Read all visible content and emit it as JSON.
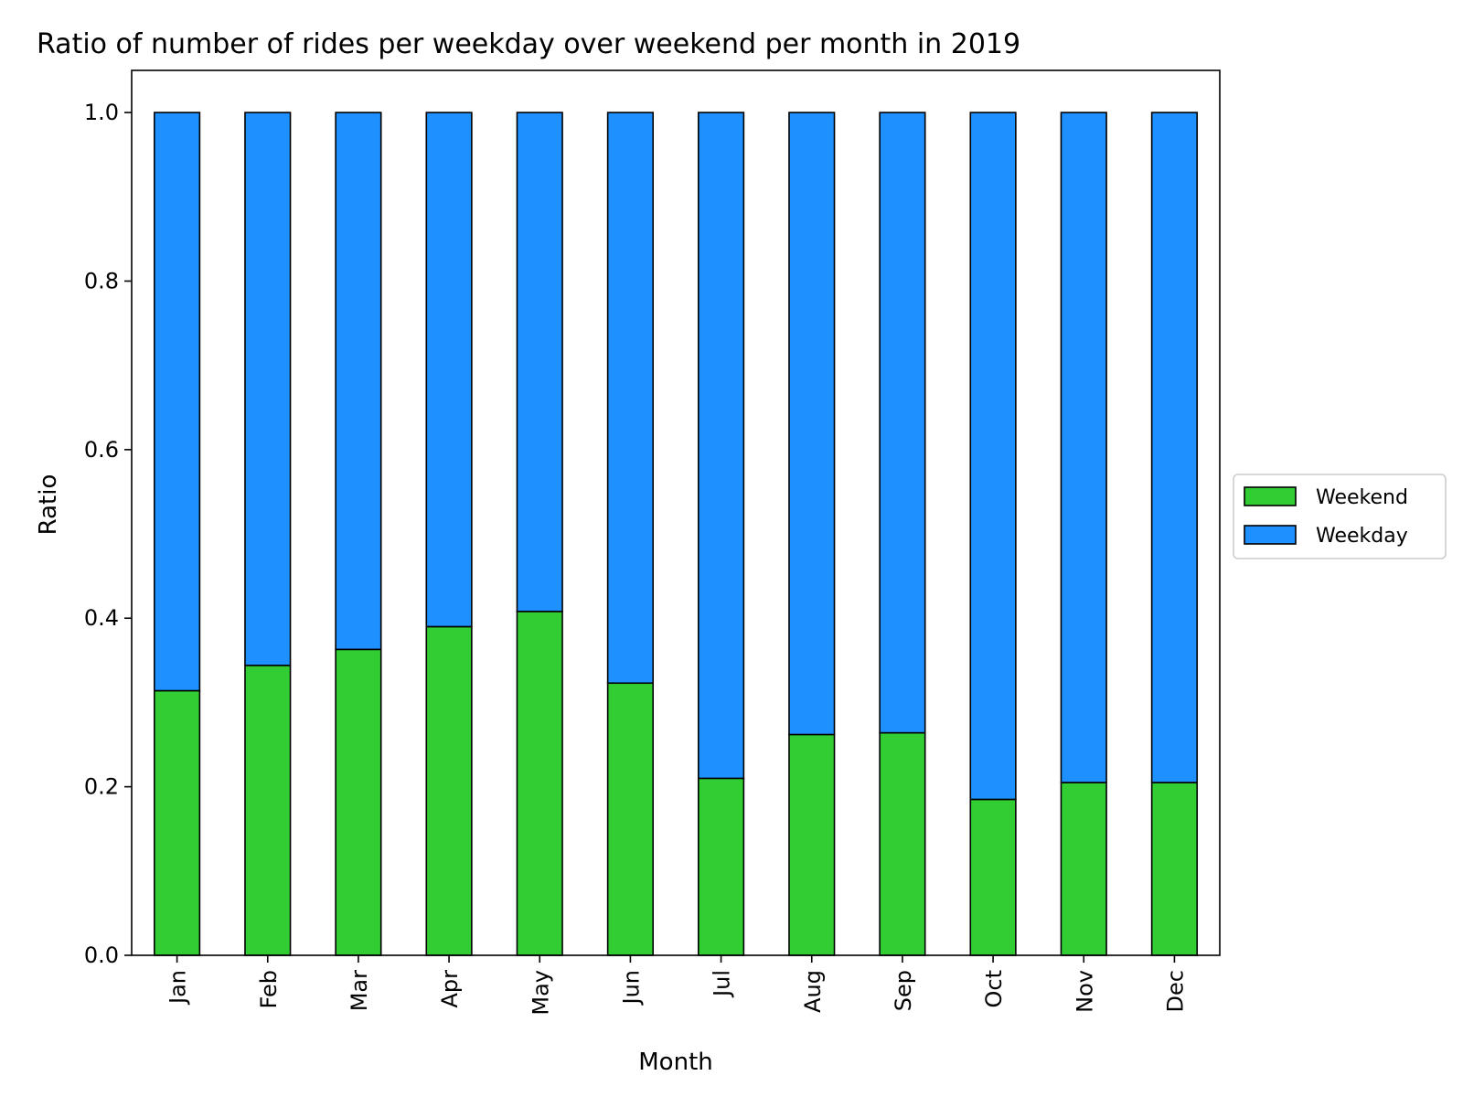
{
  "chart_data": {
    "type": "bar",
    "stacked": true,
    "title": "Ratio of number of rides per weekday over weekend per month in 2019",
    "xlabel": "Month",
    "ylabel": "Ratio",
    "ylim": [
      0,
      1.05
    ],
    "yticks": [
      "0.0",
      "0.2",
      "0.4",
      "0.6",
      "0.8",
      "1.0"
    ],
    "categories": [
      "Jan",
      "Feb",
      "Mar",
      "Apr",
      "May",
      "Jun",
      "Jul",
      "Aug",
      "Sep",
      "Oct",
      "Nov",
      "Dec"
    ],
    "series": [
      {
        "name": "Weekend",
        "color": "#32cd32",
        "values": [
          0.314,
          0.344,
          0.363,
          0.39,
          0.408,
          0.323,
          0.21,
          0.262,
          0.264,
          0.185,
          0.205,
          0.205
        ]
      },
      {
        "name": "Weekday",
        "color": "#1e90ff",
        "values": [
          0.686,
          0.656,
          0.637,
          0.61,
          0.592,
          0.677,
          0.79,
          0.738,
          0.736,
          0.815,
          0.795,
          0.795
        ]
      }
    ],
    "grid": false,
    "legend_position": "center-right-outside"
  }
}
